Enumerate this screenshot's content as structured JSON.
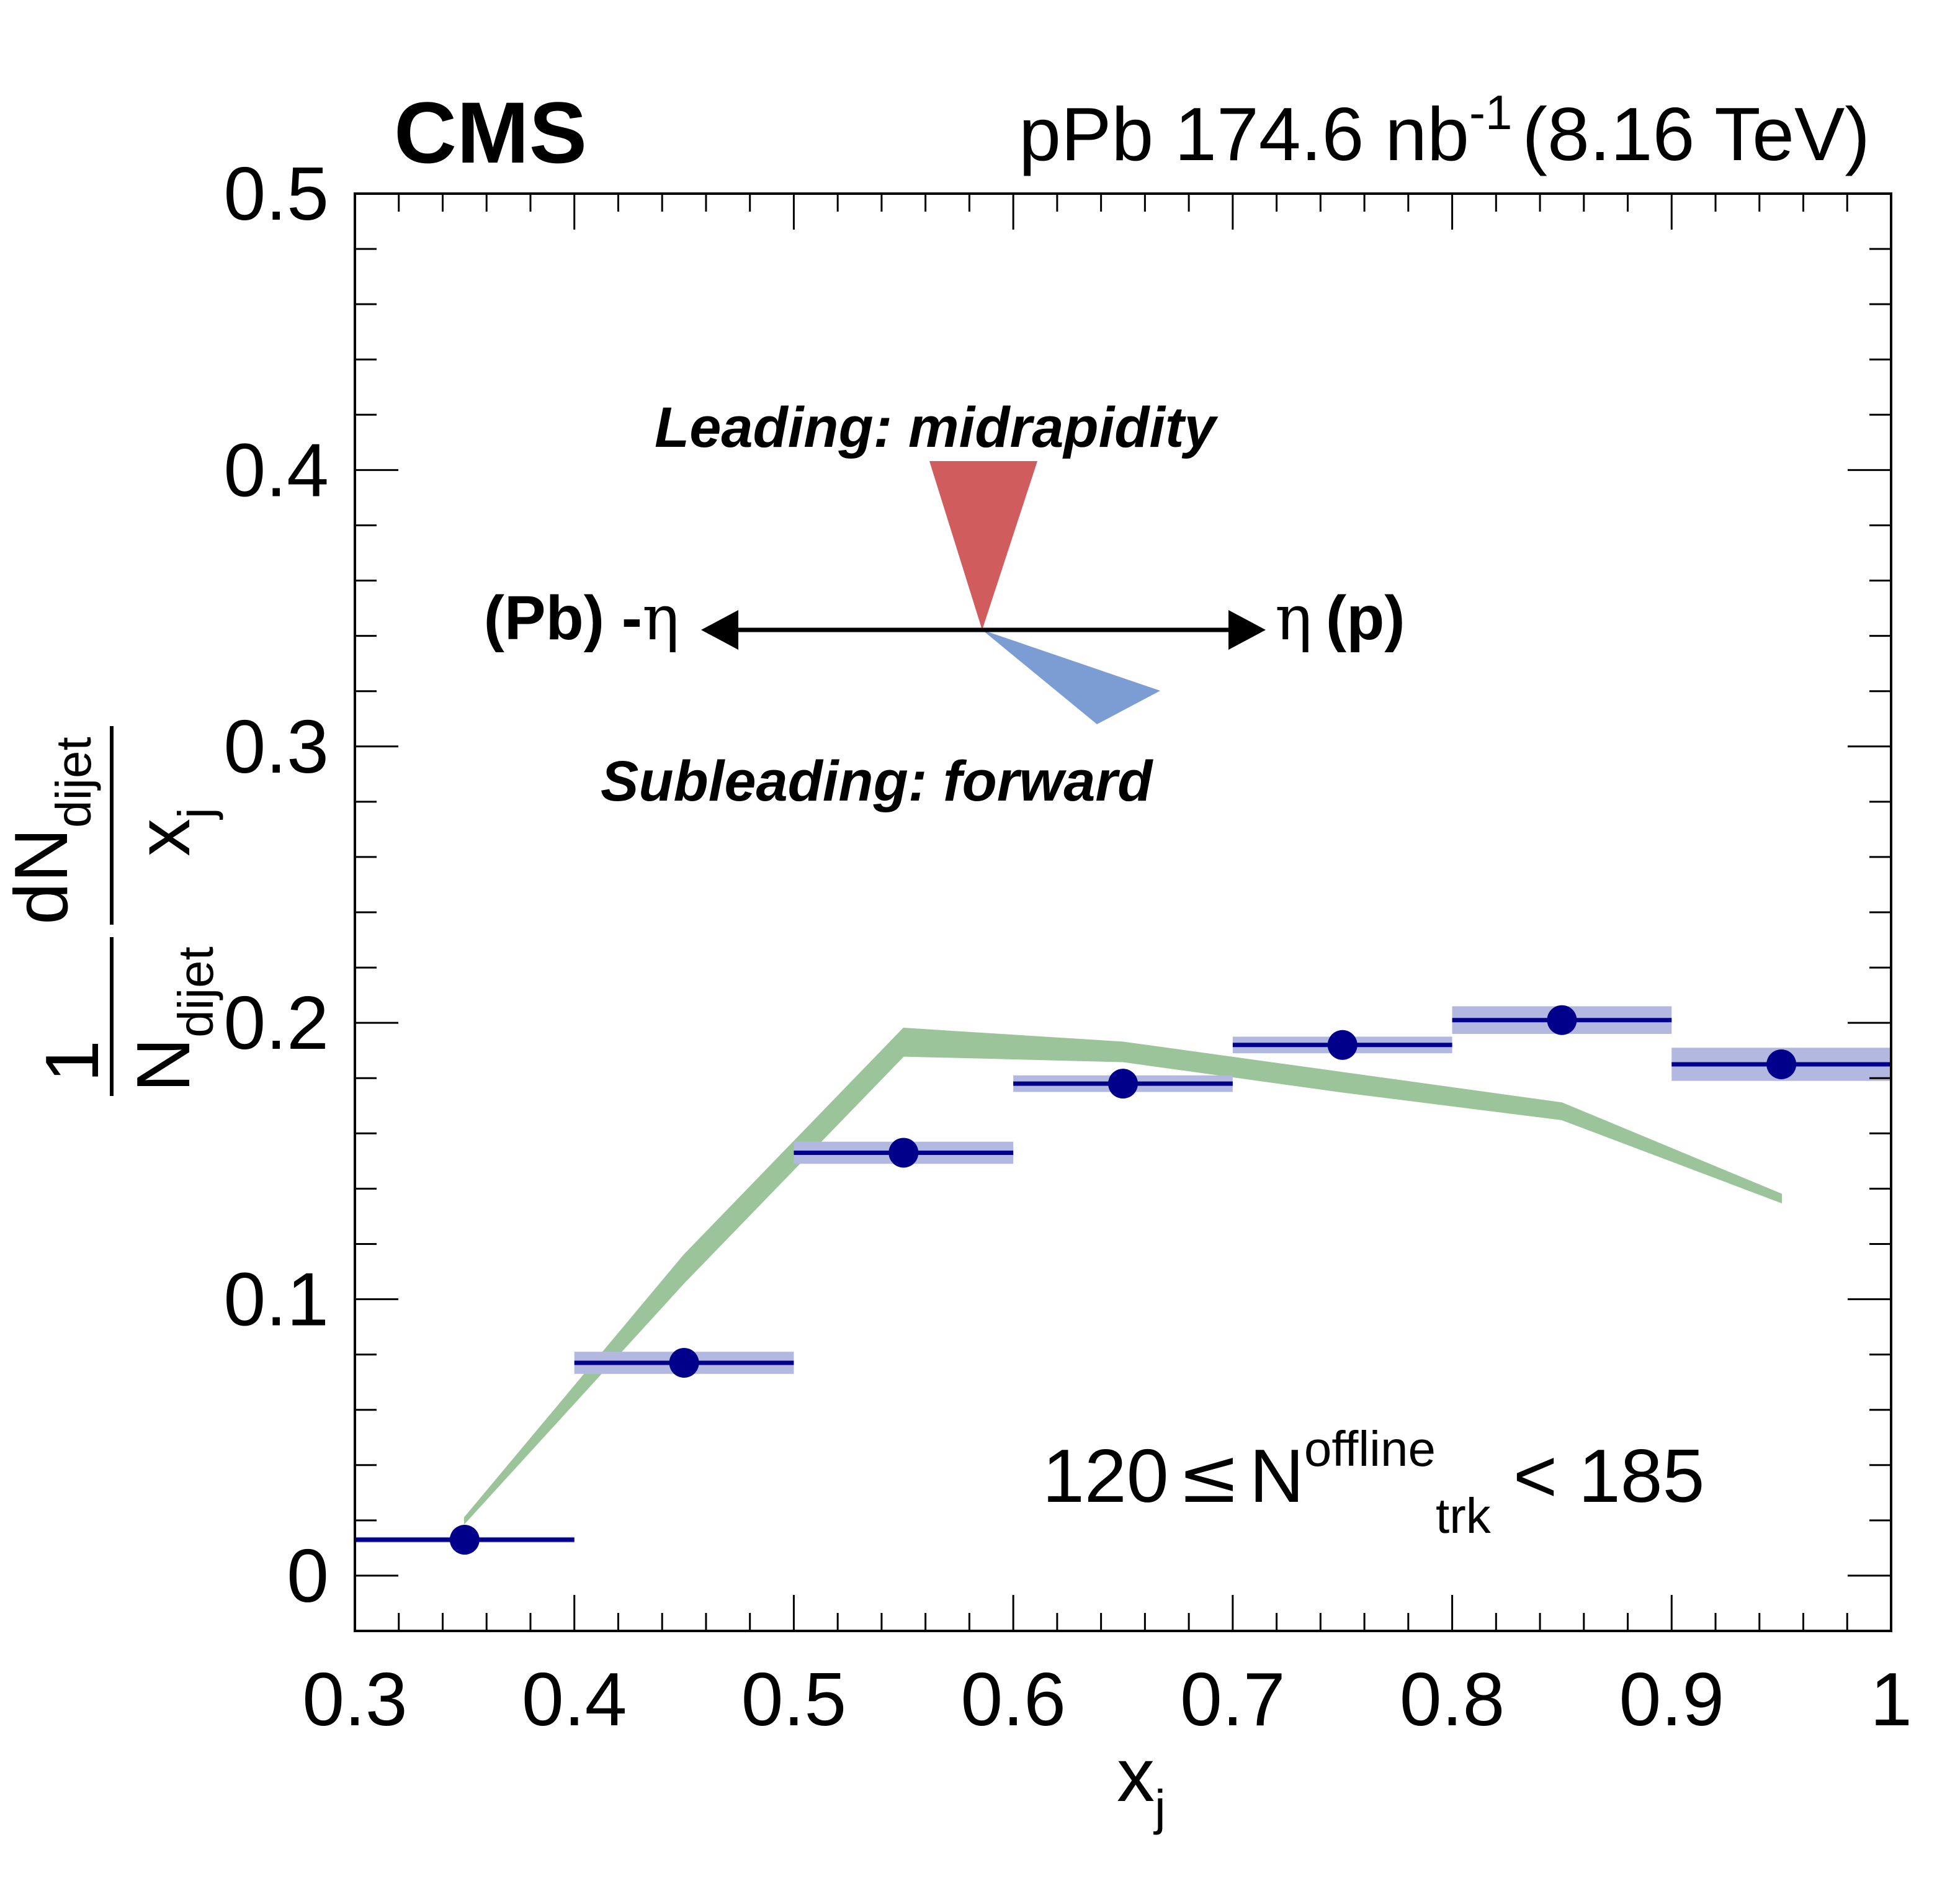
{
  "chart_data": {
    "type": "scatter",
    "experiment_label": "CMS",
    "luminosity_label": {
      "prefix": "pPb 174.6 nb",
      "exponent": "-1",
      "suffix": "(8.16 TeV)"
    },
    "xlabel": {
      "base": "x",
      "sub": "j"
    },
    "ylabel": {
      "num_prefix": "1",
      "num_base": "dN",
      "num_sub": "dijet",
      "den_base": "N",
      "den_sub": "dijet",
      "frac_num": "dN",
      "frac_num_sub": "dijet",
      "frac_den": "x",
      "frac_den_sub": "j"
    },
    "xlim": [
      0.3,
      1.0
    ],
    "ylim": [
      -0.02,
      0.5
    ],
    "x_ticks": [
      "0.3",
      "0.4",
      "0.5",
      "0.6",
      "0.7",
      "0.8",
      "0.9",
      "1"
    ],
    "y_ticks": [
      "0",
      "0.1",
      "0.2",
      "0.3",
      "0.4",
      "0.5"
    ],
    "x_tick_values": [
      0.3,
      0.4,
      0.5,
      0.6,
      0.7,
      0.8,
      0.9,
      1.0
    ],
    "y_tick_values": [
      0,
      0.1,
      0.2,
      0.3,
      0.4,
      0.5
    ],
    "series": [
      {
        "kind": "data_points",
        "color": "#00008b",
        "band_color": "#b3b8e0",
        "points": [
          {
            "x": 0.35,
            "xlo": 0.3,
            "xhi": 0.4,
            "y": 0.013,
            "syst": 0.001
          },
          {
            "x": 0.45,
            "xlo": 0.4,
            "xhi": 0.5,
            "y": 0.077,
            "syst": 0.004
          },
          {
            "x": 0.55,
            "xlo": 0.5,
            "xhi": 0.6,
            "y": 0.153,
            "syst": 0.004
          },
          {
            "x": 0.65,
            "xlo": 0.6,
            "xhi": 0.7,
            "y": 0.178,
            "syst": 0.003
          },
          {
            "x": 0.75,
            "xlo": 0.7,
            "xhi": 0.8,
            "y": 0.192,
            "syst": 0.003
          },
          {
            "x": 0.85,
            "xlo": 0.8,
            "xhi": 0.9,
            "y": 0.201,
            "syst": 0.005
          },
          {
            "x": 0.95,
            "xlo": 0.9,
            "xhi": 1.0,
            "y": 0.185,
            "syst": 0.006
          }
        ]
      },
      {
        "kind": "band",
        "color": "#9cc49a",
        "points": [
          {
            "x": 0.35,
            "ylo": 0.019,
            "yhi": 0.021
          },
          {
            "x": 0.45,
            "ylo": 0.106,
            "yhi": 0.116
          },
          {
            "x": 0.55,
            "ylo": 0.188,
            "yhi": 0.198
          },
          {
            "x": 0.65,
            "ylo": 0.186,
            "yhi": 0.193
          },
          {
            "x": 0.75,
            "ylo": 0.175,
            "yhi": 0.182
          },
          {
            "x": 0.85,
            "ylo": 0.165,
            "yhi": 0.171
          },
          {
            "x": 0.95,
            "ylo": 0.135,
            "yhi": 0.138
          }
        ]
      }
    ],
    "annotations": {
      "leading_label": "Leading: midrapidity",
      "subleading_label": "Subleading: forward",
      "left_label_text": "(Pb) -",
      "left_label_greek": "η",
      "right_label_greek": "η",
      "right_label_text": "(p)",
      "leading_color": "#d15c5e",
      "subleading_color": "#7b9dd4",
      "multiplicity": {
        "prefix": "120",
        "leq": "≤",
        "base": "N",
        "sup": "offline",
        "sub": "trk",
        "suffix": "< 185"
      }
    }
  }
}
